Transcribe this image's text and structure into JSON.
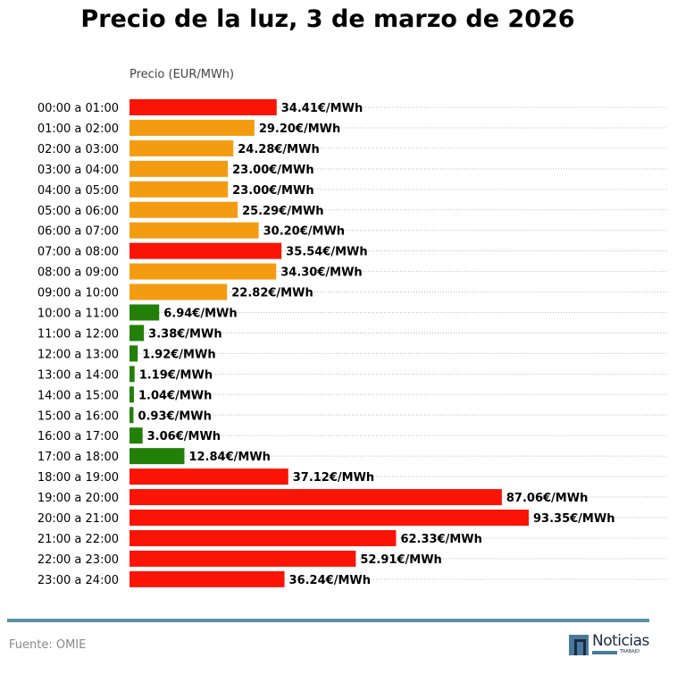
{
  "title": "Precio de la luz, 3 de marzo de 2026",
  "source": "Fuente: OMIE",
  "logo": {
    "name": "Noticias",
    "sub": "TRABAJO"
  },
  "colors": {
    "high": "#fa1405",
    "mid": "#f39c12",
    "low": "#228008",
    "footer": "#5b8fa8"
  },
  "chart_data": {
    "type": "bar",
    "orientation": "horizontal",
    "title": "Precio de la luz, 3 de marzo de 2026",
    "xlabel": "Precio (EUR/MWh)",
    "ylabel": "",
    "xlim": [
      0,
      100
    ],
    "grid": "dotted horizontal",
    "unit_suffix": "€/MWh",
    "categories": [
      "00:00 a 01:00",
      "01:00 a 02:00",
      "02:00 a 03:00",
      "03:00 a 04:00",
      "04:00 a 05:00",
      "05:00 a 06:00",
      "06:00 a 07:00",
      "07:00 a 08:00",
      "08:00 a 09:00",
      "09:00 a 10:00",
      "10:00 a 11:00",
      "11:00 a 12:00",
      "12:00 a 13:00",
      "13:00 a 14:00",
      "14:00 a 15:00",
      "15:00 a 16:00",
      "16:00 a 17:00",
      "17:00 a 18:00",
      "18:00 a 19:00",
      "19:00 a 20:00",
      "20:00 a 21:00",
      "21:00 a 22:00",
      "22:00 a 23:00",
      "23:00 a 24:00"
    ],
    "values": [
      34.41,
      29.2,
      24.28,
      23.0,
      23.0,
      25.29,
      30.2,
      35.54,
      34.3,
      22.82,
      6.94,
      3.38,
      1.92,
      1.19,
      1.04,
      0.93,
      3.06,
      12.84,
      37.12,
      87.06,
      93.35,
      62.33,
      52.91,
      36.24
    ],
    "levels": [
      "high",
      "mid",
      "mid",
      "mid",
      "mid",
      "mid",
      "mid",
      "high",
      "mid",
      "mid",
      "low",
      "low",
      "low",
      "low",
      "low",
      "low",
      "low",
      "low",
      "high",
      "high",
      "high",
      "high",
      "high",
      "high"
    ]
  }
}
